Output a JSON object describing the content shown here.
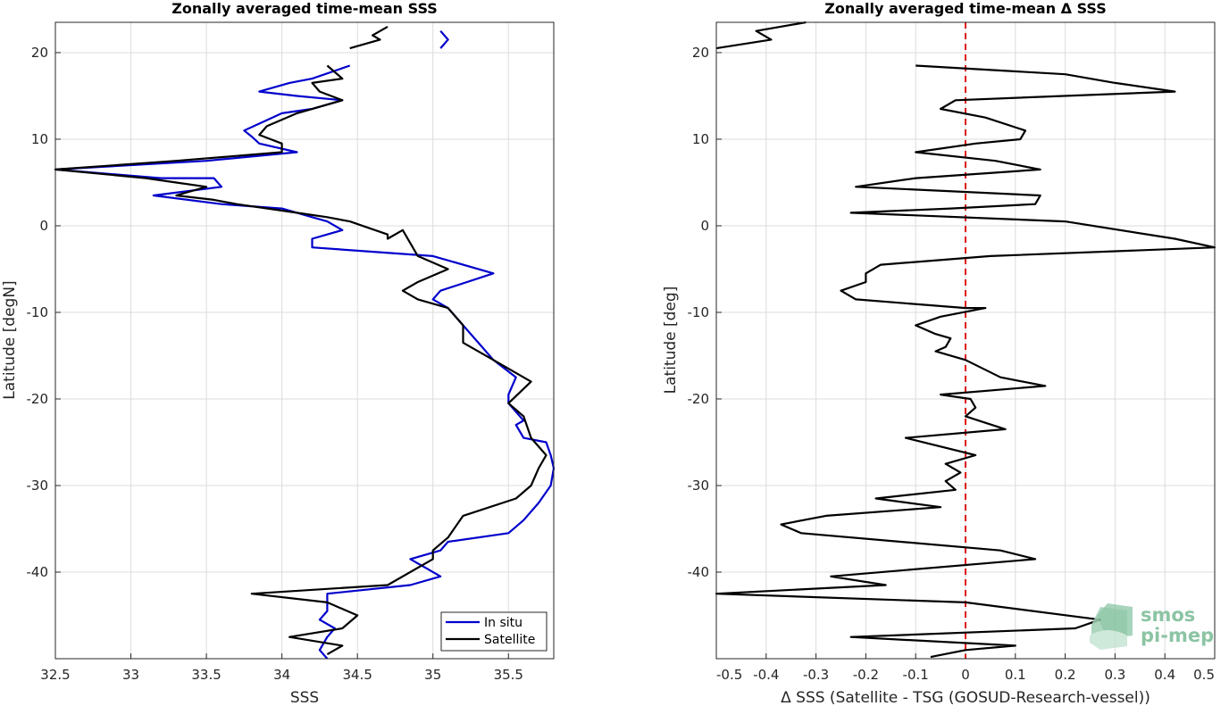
{
  "logo": {
    "line1": "smos",
    "line2": "pi-mep",
    "color": "#8cc4a4"
  },
  "chart_data": [
    {
      "type": "line",
      "title": "Zonally averaged time-mean SSS",
      "xlabel": "SSS",
      "ylabel": "Latitude [degN]",
      "xlim": [
        32.5,
        35.8
      ],
      "ylim": [
        -50,
        23.5
      ],
      "xticks": [
        32.5,
        33,
        33.5,
        34,
        34.5,
        35,
        35.5
      ],
      "yticks": [
        -40,
        -30,
        -20,
        -10,
        0,
        10,
        20
      ],
      "grid": true,
      "legend": "bottom-right",
      "series": [
        {
          "name": "In situ",
          "color": "#0000cc",
          "points": [
            [
              35.05,
              22.5
            ],
            [
              35.1,
              21.5
            ],
            [
              35.05,
              20.5
            ],
            [
              null,
              null
            ],
            [
              34.45,
              18.5
            ],
            [
              34.2,
              17
            ],
            [
              34.05,
              16.5
            ],
            [
              33.85,
              15.5
            ],
            [
              34.1,
              15
            ],
            [
              34.4,
              14.5
            ],
            [
              34.2,
              13.5
            ],
            [
              34.0,
              13
            ],
            [
              33.75,
              11
            ],
            [
              33.8,
              10.3
            ],
            [
              33.85,
              9.5
            ],
            [
              34.1,
              8.5
            ],
            [
              33.5,
              7.5
            ],
            [
              32.5,
              6.5
            ],
            [
              33.2,
              5.5
            ],
            [
              33.55,
              5.5
            ],
            [
              33.6,
              4.5
            ],
            [
              33.15,
              3.5
            ],
            [
              33.6,
              2.5
            ],
            [
              34.0,
              2.0
            ],
            [
              34.2,
              1.0
            ],
            [
              34.3,
              0.5
            ],
            [
              34.4,
              -0.5
            ],
            [
              34.2,
              -1.5
            ],
            [
              34.2,
              -2.5
            ],
            [
              35.0,
              -3.5
            ],
            [
              35.4,
              -5.5
            ],
            [
              35.05,
              -7.5
            ],
            [
              35.0,
              -8.5
            ],
            [
              35.1,
              -9.5
            ],
            [
              35.2,
              -11.5
            ],
            [
              35.3,
              -13.5
            ],
            [
              35.4,
              -15.5
            ],
            [
              35.55,
              -17.5
            ],
            [
              35.5,
              -19.5
            ],
            [
              35.5,
              -20.5
            ],
            [
              35.6,
              -22.5
            ],
            [
              35.55,
              -23.0
            ],
            [
              35.6,
              -24.5
            ],
            [
              35.75,
              -25.0
            ],
            [
              35.78,
              -26.5
            ],
            [
              35.8,
              -28
            ],
            [
              35.78,
              -30
            ],
            [
              35.7,
              -32
            ],
            [
              35.6,
              -34
            ],
            [
              35.5,
              -35.5
            ],
            [
              35.1,
              -36.5
            ],
            [
              35.05,
              -37.5
            ],
            [
              34.85,
              -38.5
            ],
            [
              34.95,
              -39.5
            ],
            [
              35.05,
              -40.5
            ],
            [
              34.85,
              -41.5
            ],
            [
              34.3,
              -42.5
            ],
            [
              34.3,
              -44.5
            ],
            [
              34.25,
              -45.5
            ],
            [
              34.35,
              -46.5
            ],
            [
              34.3,
              -47.5
            ],
            [
              34.25,
              -49
            ],
            [
              34.3,
              -50
            ]
          ]
        },
        {
          "name": "Satellite",
          "color": "#000000",
          "points": [
            [
              34.7,
              23
            ],
            [
              34.6,
              22
            ],
            [
              34.65,
              21.5
            ],
            [
              34.45,
              20.5
            ],
            [
              null,
              null
            ],
            [
              34.3,
              18.5
            ],
            [
              34.4,
              17
            ],
            [
              34.2,
              16.5
            ],
            [
              34.25,
              15.5
            ],
            [
              34.4,
              14.5
            ],
            [
              34.1,
              13
            ],
            [
              33.9,
              11.5
            ],
            [
              33.85,
              10.5
            ],
            [
              34.0,
              9.5
            ],
            [
              34.0,
              8.5
            ],
            [
              33.3,
              7.5
            ],
            [
              32.5,
              6.5
            ],
            [
              33.1,
              5.5
            ],
            [
              33.3,
              5.0
            ],
            [
              33.5,
              4.5
            ],
            [
              33.3,
              3.5
            ],
            [
              33.55,
              3
            ],
            [
              33.7,
              2.5
            ],
            [
              34.1,
              1.5
            ],
            [
              34.3,
              1.0
            ],
            [
              34.45,
              0.5
            ],
            [
              34.7,
              -1
            ],
            [
              34.7,
              -1.5
            ],
            [
              34.8,
              -0.5
            ],
            [
              34.9,
              -3.5
            ],
            [
              35.1,
              -5
            ],
            [
              34.9,
              -6.5
            ],
            [
              34.8,
              -7.5
            ],
            [
              34.9,
              -8.5
            ],
            [
              35.1,
              -9.5
            ],
            [
              35.2,
              -11.5
            ],
            [
              35.2,
              -13.5
            ],
            [
              35.4,
              -15.5
            ],
            [
              35.65,
              -18
            ],
            [
              35.5,
              -20.5
            ],
            [
              35.6,
              -22
            ],
            [
              35.65,
              -24.5
            ],
            [
              35.75,
              -26.5
            ],
            [
              35.7,
              -28
            ],
            [
              35.65,
              -30
            ],
            [
              35.55,
              -31.5
            ],
            [
              35.2,
              -33.5
            ],
            [
              35.1,
              -36
            ],
            [
              35.0,
              -37.5
            ],
            [
              35.0,
              -38.5
            ],
            [
              34.7,
              -41.5
            ],
            [
              33.8,
              -42.5
            ],
            [
              34.3,
              -43.5
            ],
            [
              34.5,
              -45
            ],
            [
              34.4,
              -46.5
            ],
            [
              34.05,
              -47.5
            ],
            [
              34.4,
              -48.5
            ],
            [
              34.3,
              -49.5
            ]
          ]
        }
      ]
    },
    {
      "type": "line",
      "title": "Zonally averaged time-mean Δ SSS",
      "xlabel": "Δ SSS (Satellite - TSG (GOSUD-Research-vessel))",
      "ylabel": "Latitude [deg]",
      "xlim": [
        -0.5,
        0.5
      ],
      "ylim": [
        -50,
        23.5
      ],
      "xticks": [
        -0.5,
        -0.4,
        -0.3,
        -0.2,
        -0.1,
        0,
        0.1,
        0.2,
        0.3,
        0.4,
        0.5
      ],
      "yticks": [
        -40,
        -30,
        -20,
        -10,
        0,
        10,
        20
      ],
      "grid": true,
      "series": [
        {
          "name": "",
          "color": "#000000",
          "points": [
            [
              -0.32,
              23.5
            ],
            [
              -0.42,
              22.5
            ],
            [
              -0.39,
              21.5
            ],
            [
              -0.5,
              20.5
            ],
            [
              null,
              null
            ],
            [
              -0.1,
              18.5
            ],
            [
              0.2,
              17.5
            ],
            [
              0.3,
              16.5
            ],
            [
              0.42,
              15.5
            ],
            [
              -0.02,
              14.5
            ],
            [
              -0.05,
              13.5
            ],
            [
              0.04,
              12.5
            ],
            [
              0.12,
              11
            ],
            [
              0.11,
              10
            ],
            [
              0.02,
              9.5
            ],
            [
              -0.1,
              8.5
            ],
            [
              0.06,
              7.5
            ],
            [
              0.15,
              6.5
            ],
            [
              -0.1,
              5.5
            ],
            [
              -0.22,
              4.5
            ],
            [
              0.15,
              3.5
            ],
            [
              0.14,
              2.5
            ],
            [
              -0.03,
              2
            ],
            [
              -0.23,
              1.5
            ],
            [
              0.2,
              0.5
            ],
            [
              0.42,
              -1.5
            ],
            [
              0.5,
              -2.5
            ],
            [
              0.05,
              -3.5
            ],
            [
              -0.17,
              -4.5
            ],
            [
              -0.2,
              -5.5
            ],
            [
              -0.2,
              -6.5
            ],
            [
              -0.25,
              -7.5
            ],
            [
              -0.22,
              -8.5
            ],
            [
              0.0,
              -9.5
            ],
            [
              0.04,
              -9.5
            ],
            [
              -0.05,
              -10.5
            ],
            [
              -0.1,
              -11.5
            ],
            [
              -0.06,
              -12.5
            ],
            [
              -0.03,
              -13
            ],
            [
              -0.04,
              -14
            ],
            [
              -0.06,
              -14.5
            ],
            [
              0.0,
              -15.5
            ],
            [
              0.07,
              -17.5
            ],
            [
              0.16,
              -18.5
            ],
            [
              -0.05,
              -19.5
            ],
            [
              0.01,
              -20
            ],
            [
              0.02,
              -21
            ],
            [
              0.0,
              -22
            ],
            [
              0.08,
              -23.5
            ],
            [
              -0.12,
              -24.5
            ],
            [
              0.02,
              -26.5
            ],
            [
              -0.04,
              -27.5
            ],
            [
              -0.01,
              -28.5
            ],
            [
              -0.04,
              -29.5
            ],
            [
              -0.02,
              -30.5
            ],
            [
              -0.18,
              -31.5
            ],
            [
              -0.05,
              -32.5
            ],
            [
              -0.28,
              -33.5
            ],
            [
              -0.37,
              -34.5
            ],
            [
              -0.33,
              -35.5
            ],
            [
              0.07,
              -37.5
            ],
            [
              0.14,
              -38.5
            ],
            [
              -0.27,
              -40.5
            ],
            [
              -0.16,
              -41.5
            ],
            [
              -0.5,
              -42.5
            ],
            [
              0.0,
              -43.5
            ],
            [
              0.27,
              -45.5
            ],
            [
              0.22,
              -46.5
            ],
            [
              -0.23,
              -47.5
            ],
            [
              0.1,
              -48.5
            ],
            [
              0.0,
              -49
            ],
            [
              -0.07,
              -49.8
            ]
          ]
        }
      ],
      "reference_line": {
        "x": 0,
        "color": "#dd1111",
        "style": "dashed"
      }
    }
  ]
}
